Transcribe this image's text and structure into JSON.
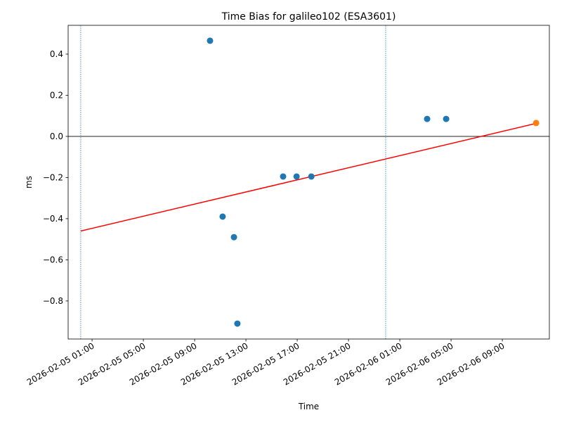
{
  "chart_data": {
    "type": "scatter",
    "title": "Time Bias for galileo102 (ESA3601)",
    "xlabel": "Time",
    "ylabel": "ms",
    "xlim": [
      "2026-02-04 23:08",
      "2026-02-06 12:40"
    ],
    "ylim": [
      -0.985,
      0.54
    ],
    "xticks": [
      "2026-02-05 01:00",
      "2026-02-05 05:00",
      "2026-02-05 09:00",
      "2026-02-05 13:00",
      "2026-02-05 17:00",
      "2026-02-05 21:00",
      "2026-02-06 01:00",
      "2026-02-06 05:00",
      "2026-02-06 09:00"
    ],
    "yticks": [
      {
        "value": -0.8,
        "label": "−0.8"
      },
      {
        "value": -0.6,
        "label": "−0.6"
      },
      {
        "value": -0.4,
        "label": "−0.4"
      },
      {
        "value": -0.2,
        "label": "−0.2"
      },
      {
        "value": 0,
        "label": "0.0"
      },
      0.2,
      0.4
    ],
    "series": [
      {
        "color": "#1f77b4",
        "x": [
          "2026-02-05 10:12",
          "2026-02-05 11:11",
          "2026-02-05 12:04",
          "2026-02-05 12:20",
          "2026-02-05 15:54",
          "2026-02-05 16:57",
          "2026-02-05 18:06",
          "2026-02-06 03:08",
          "2026-02-06 04:37"
        ],
        "values": [
          0.465,
          -0.39,
          -0.49,
          -0.91,
          -0.195,
          -0.195,
          -0.195,
          0.085,
          0.085
        ]
      },
      {
        "color": "#ff7f0e",
        "x": [
          "2026-02-06 11:38"
        ],
        "values": [
          0.065
        ]
      }
    ],
    "trend": {
      "color": "#ff0000",
      "x": [
        "2026-02-05 00:07",
        "2026-02-06 11:38"
      ],
      "values": [
        -0.46,
        0.063
      ]
    },
    "vlines": {
      "color": "#1f77b4",
      "x": [
        "2026-02-05 00:07",
        "2026-02-05 23:54"
      ]
    },
    "hline": {
      "color": "#000000",
      "value": 0
    }
  }
}
